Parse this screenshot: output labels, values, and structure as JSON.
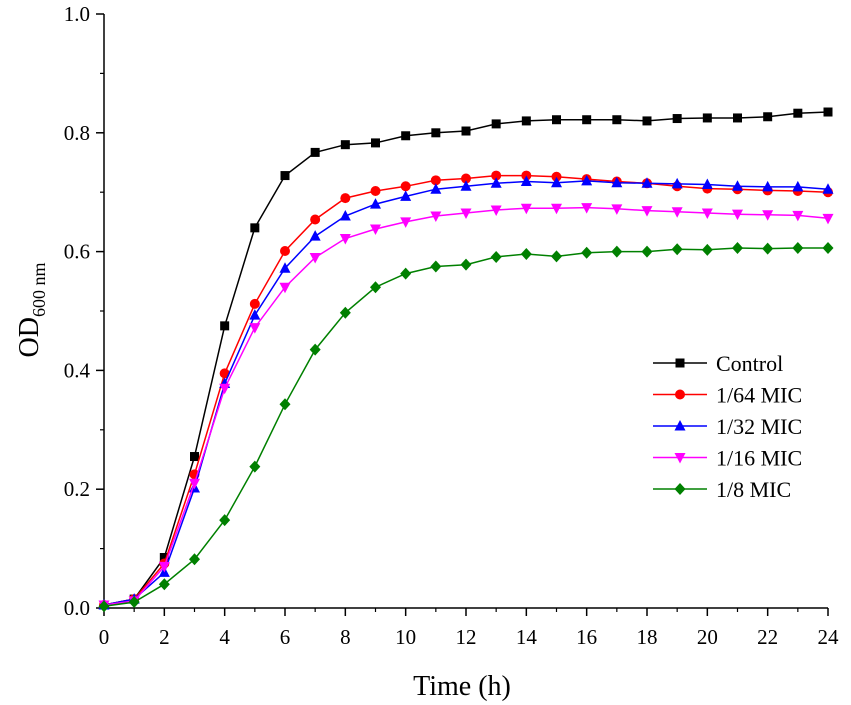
{
  "chart_data": {
    "type": "line",
    "title": "",
    "xlabel": "Time (h)",
    "ylabel": "OD",
    "ylabel_sub": "600 nm",
    "xlim": [
      0,
      24
    ],
    "ylim": [
      0,
      1.0
    ],
    "xticks": [
      0,
      2,
      4,
      6,
      8,
      10,
      12,
      14,
      16,
      18,
      20,
      22,
      24
    ],
    "xtick_labels": [
      "0",
      "2",
      "4",
      "6",
      "8",
      "10",
      "12",
      "14",
      "16",
      "18",
      "20",
      "22",
      "24"
    ],
    "yticks": [
      0,
      0.2,
      0.4,
      0.6,
      0.8,
      1.0
    ],
    "ytick_labels": [
      "0.0",
      "0.2",
      "0.4",
      "0.6",
      "0.8",
      "1.0"
    ],
    "grid": false,
    "legend_position": "right-center",
    "x": [
      0,
      1,
      2,
      3,
      4,
      5,
      6,
      7,
      8,
      9,
      10,
      11,
      12,
      13,
      14,
      15,
      16,
      17,
      18,
      19,
      20,
      21,
      22,
      23,
      24
    ],
    "series": [
      {
        "name": "Control",
        "color": "#000000",
        "marker": "square",
        "values": [
          0.005,
          0.015,
          0.085,
          0.255,
          0.475,
          0.64,
          0.728,
          0.767,
          0.78,
          0.783,
          0.795,
          0.8,
          0.803,
          0.815,
          0.82,
          0.822,
          0.822,
          0.822,
          0.82,
          0.824,
          0.825,
          0.825,
          0.827,
          0.833,
          0.835
        ]
      },
      {
        "name": "1/64 MIC",
        "color": "#ff0000",
        "marker": "circle",
        "values": [
          0.005,
          0.015,
          0.075,
          0.225,
          0.395,
          0.512,
          0.601,
          0.654,
          0.69,
          0.702,
          0.71,
          0.72,
          0.723,
          0.728,
          0.728,
          0.726,
          0.722,
          0.718,
          0.715,
          0.71,
          0.706,
          0.705,
          0.703,
          0.702,
          0.7
        ]
      },
      {
        "name": "1/32 MIC",
        "color": "#0000ff",
        "marker": "triangle-up",
        "values": [
          0.005,
          0.015,
          0.06,
          0.202,
          0.378,
          0.493,
          0.572,
          0.626,
          0.66,
          0.68,
          0.693,
          0.705,
          0.71,
          0.715,
          0.718,
          0.716,
          0.719,
          0.716,
          0.715,
          0.714,
          0.713,
          0.71,
          0.709,
          0.709,
          0.705
        ]
      },
      {
        "name": "1/16 MIC",
        "color": "#ff00ff",
        "marker": "triangle-down",
        "values": [
          0.005,
          0.012,
          0.07,
          0.21,
          0.37,
          0.472,
          0.54,
          0.59,
          0.622,
          0.638,
          0.65,
          0.66,
          0.665,
          0.67,
          0.673,
          0.673,
          0.674,
          0.672,
          0.669,
          0.667,
          0.665,
          0.663,
          0.662,
          0.661,
          0.656
        ]
      },
      {
        "name": "1/8 MIC",
        "color": "#008000",
        "marker": "diamond",
        "values": [
          0.003,
          0.01,
          0.04,
          0.082,
          0.148,
          0.238,
          0.343,
          0.435,
          0.497,
          0.54,
          0.563,
          0.575,
          0.578,
          0.591,
          0.596,
          0.592,
          0.598,
          0.6,
          0.6,
          0.604,
          0.603,
          0.606,
          0.605,
          0.606,
          0.606
        ]
      }
    ]
  }
}
